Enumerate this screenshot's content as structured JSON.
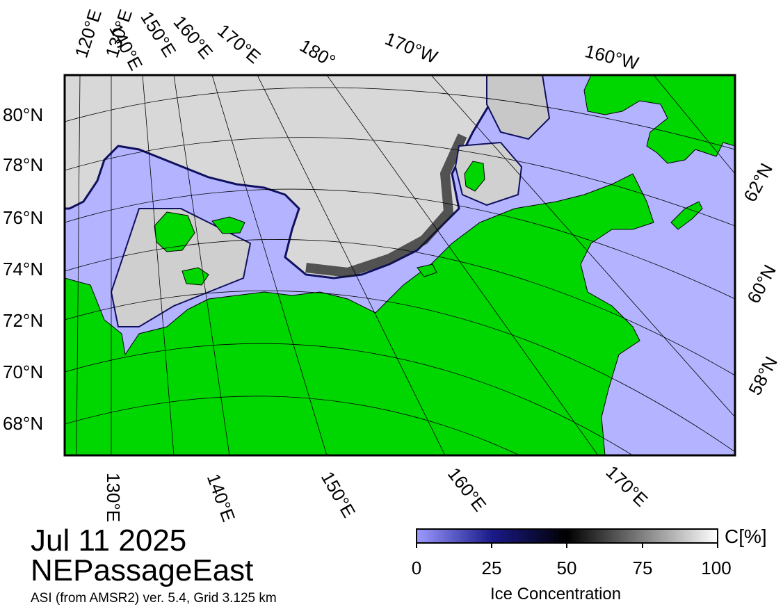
{
  "caption": {
    "date": "Jul 11 2025",
    "region": "NEPassageEast",
    "source": "ASI (from AMSR2) ver. 5.4,  Grid 3.125 km"
  },
  "map": {
    "top_longitude_labels": [
      "120°E",
      "130°E",
      "140°E",
      "150°E",
      "160°E",
      "170°E",
      "180°",
      "170°W",
      "160°W"
    ],
    "bottom_longitude_labels": [
      "130°E",
      "140°E",
      "150°E",
      "160°E",
      "170°E"
    ],
    "left_latitude_labels": [
      "80°N",
      "78°N",
      "76°N",
      "74°N",
      "72°N",
      "70°N",
      "68°N"
    ],
    "right_latitude_labels": [
      "62°N",
      "60°N",
      "58°N"
    ],
    "colors": {
      "land": "#00d600",
      "open_water": "#b3b3ff",
      "ice_high": "#ffffff",
      "ice_mid": "#000000",
      "ice_low": "#0a0a6e"
    }
  },
  "colorbar": {
    "ticks": [
      "0",
      "25",
      "50",
      "75",
      "100"
    ],
    "unit": "C[%]",
    "label": "Ice Concentration"
  }
}
